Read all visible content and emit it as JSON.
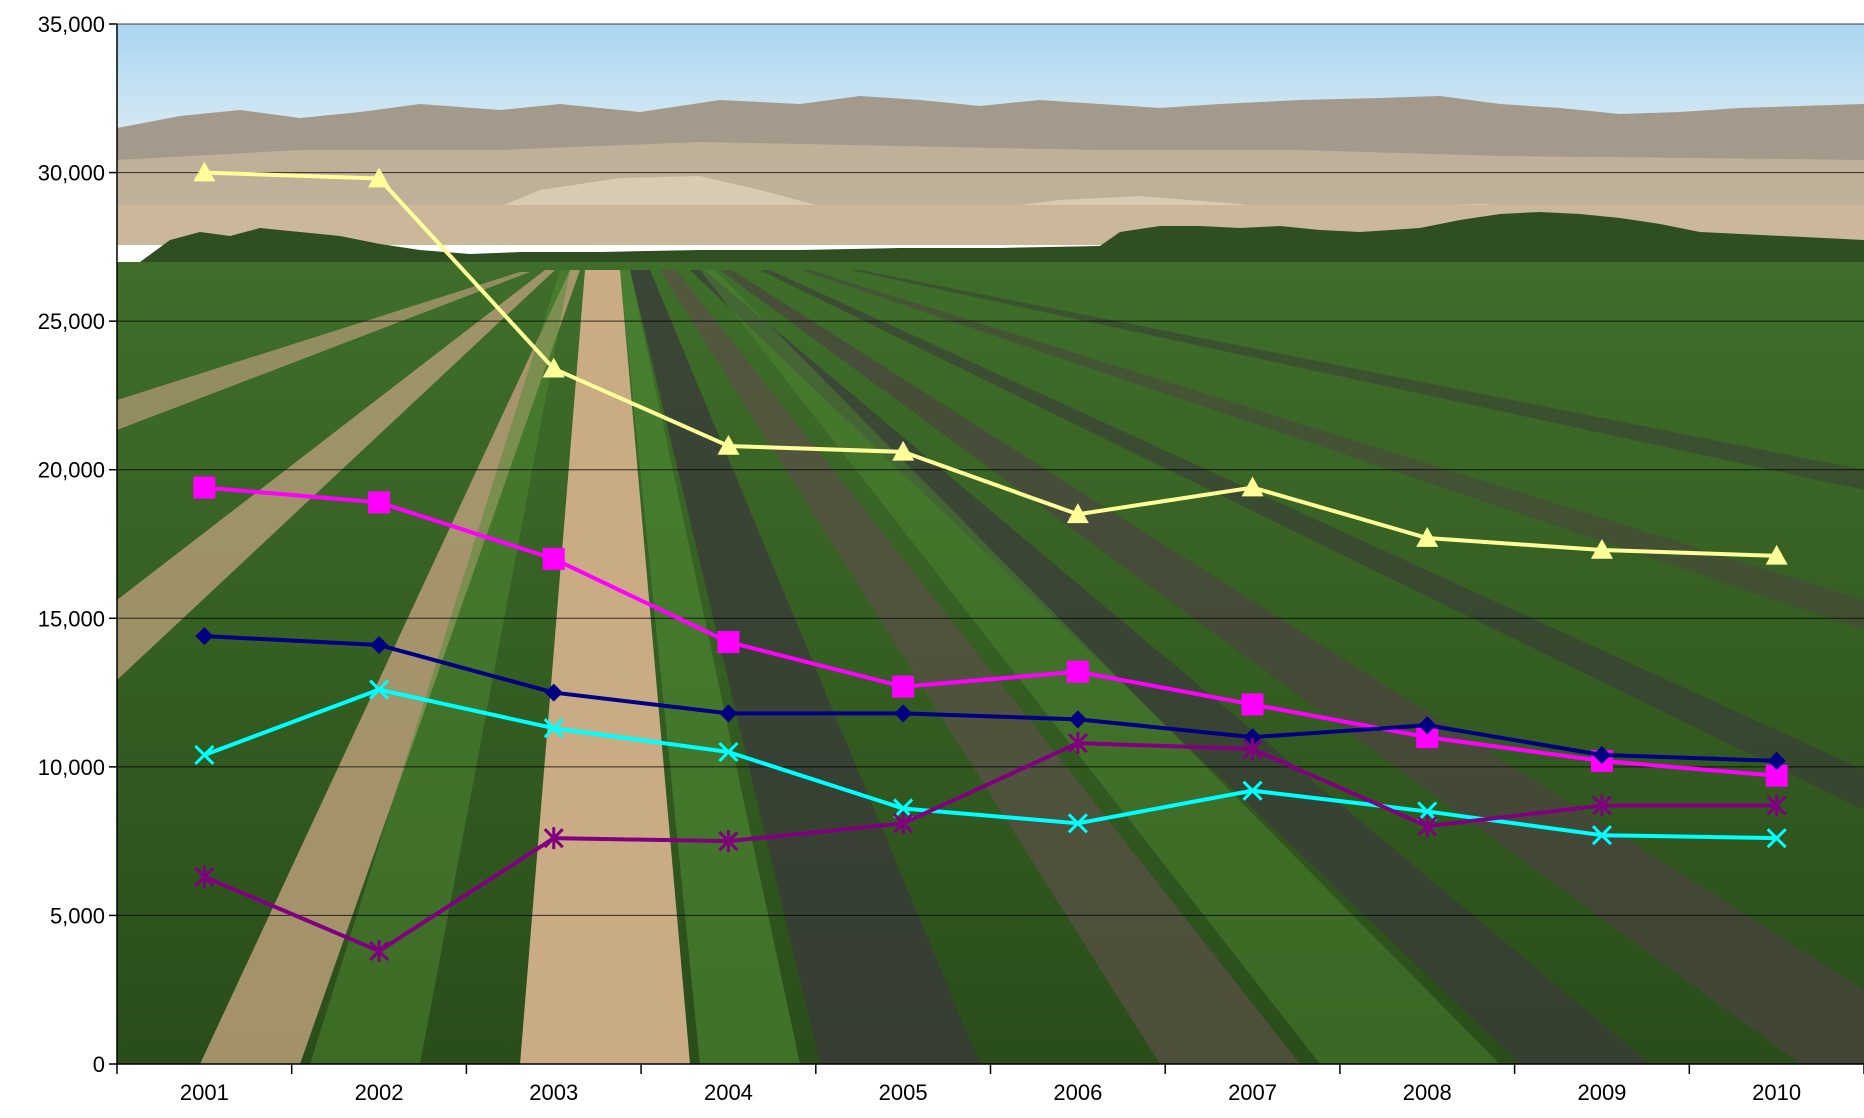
{
  "chart_data": {
    "type": "line",
    "title": "",
    "xlabel": "",
    "ylabel": "",
    "categories": [
      "2001",
      "2002",
      "2003",
      "2004",
      "2005",
      "2006",
      "2007",
      "2008",
      "2009",
      "2010"
    ],
    "ylim": [
      0,
      35000
    ],
    "yticks": [
      0,
      5000,
      10000,
      15000,
      20000,
      25000,
      30000,
      35000
    ],
    "ytick_labels": [
      "0",
      "5,000",
      "10,000",
      "15,000",
      "20,000",
      "25,000",
      "30,000",
      "35,000"
    ],
    "grid": "horizontal",
    "background": "photo of a green crop field with desert mountains",
    "legend": "none",
    "series": [
      {
        "marker": "triangle",
        "color": "#ffff99",
        "values": [
          30000,
          29800,
          23400,
          20800,
          20600,
          18500,
          19400,
          17700,
          17300,
          17100
        ]
      },
      {
        "marker": "square",
        "color": "#ff00ff",
        "values": [
          19400,
          18900,
          17000,
          14200,
          12700,
          13200,
          12100,
          11000,
          10200,
          9700
        ]
      },
      {
        "marker": "diamond",
        "color": "#000080",
        "values": [
          14400,
          14100,
          12500,
          11800,
          11800,
          11600,
          11000,
          11400,
          10400,
          10200
        ]
      },
      {
        "marker": "x",
        "color": "#00ffff",
        "values": [
          10400,
          12600,
          11300,
          10500,
          8600,
          8100,
          9200,
          8500,
          7700,
          7600
        ]
      },
      {
        "marker": "star",
        "color": "#800080",
        "values": [
          6300,
          3800,
          7600,
          7500,
          8100,
          10800,
          10600,
          8000,
          8700,
          8700
        ]
      }
    ]
  }
}
